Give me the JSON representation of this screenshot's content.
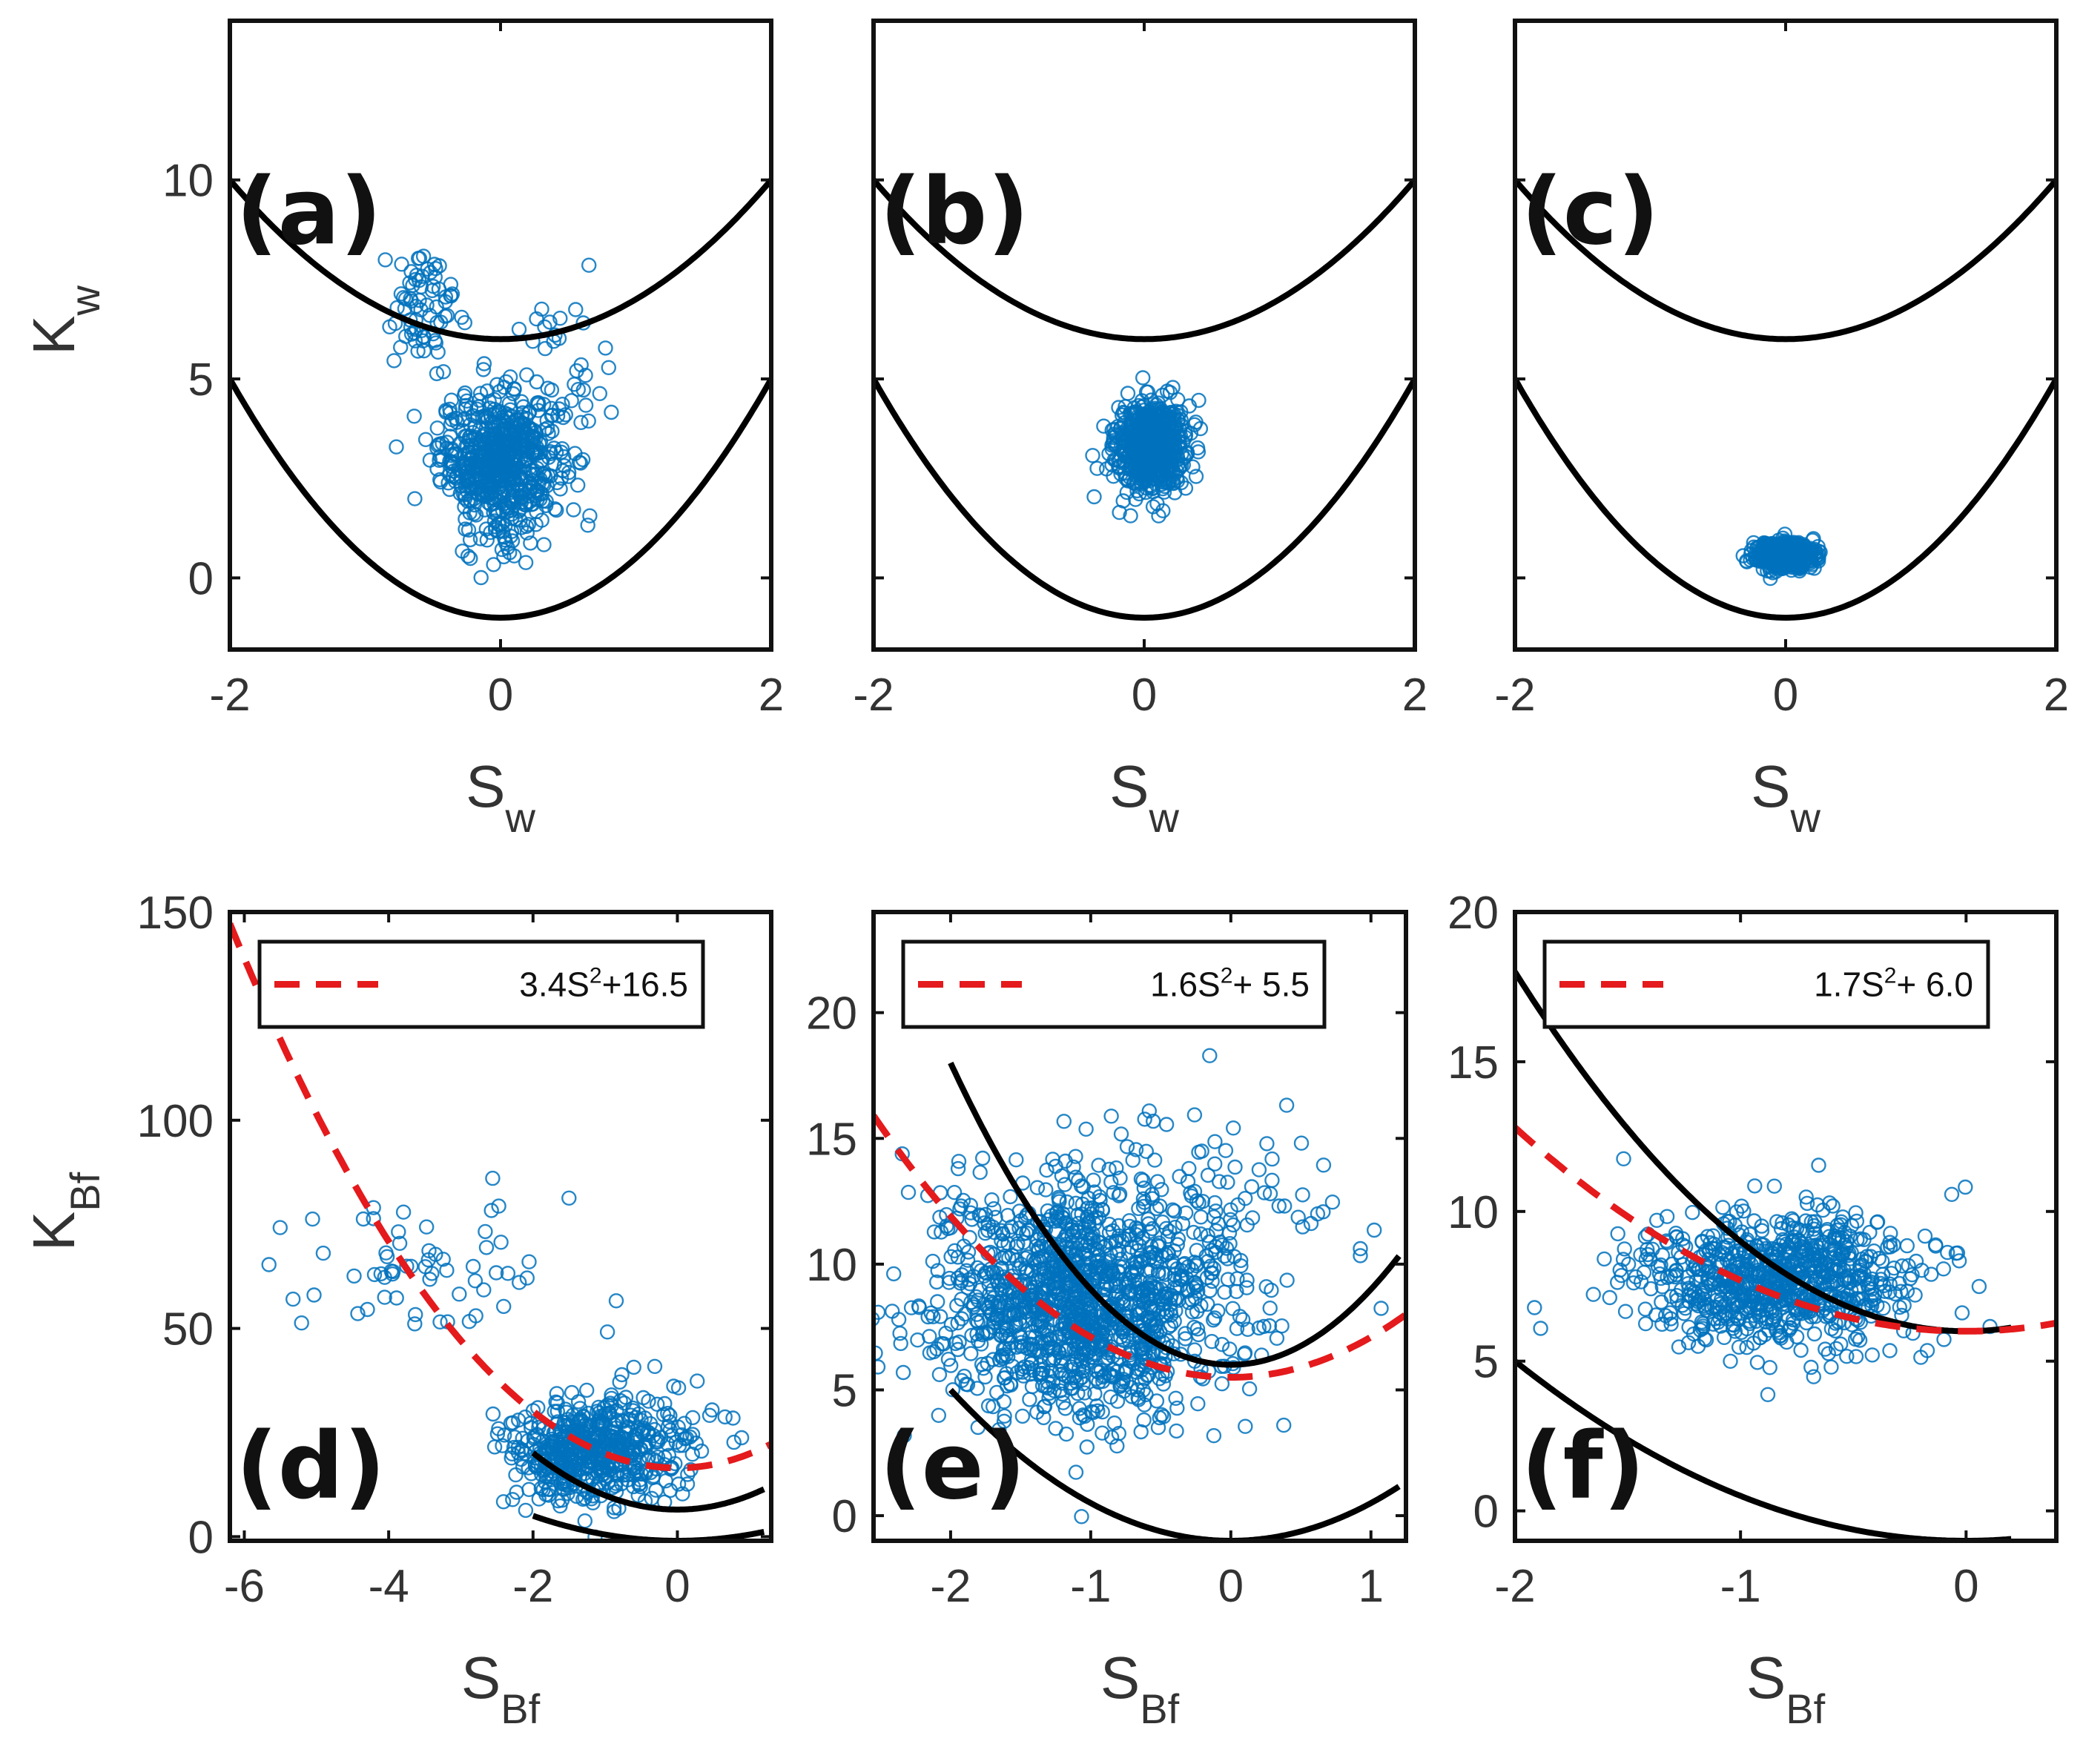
{
  "chart_data": [
    {
      "id": "a",
      "type": "scatter",
      "panel_label": "(a)",
      "xlabel": "S",
      "xlabel_sub": "w",
      "ylabel": "K",
      "ylabel_sub": "w",
      "xlim": [
        -2,
        2
      ],
      "ylim": [
        -1.8,
        14
      ],
      "xticks": [
        "-2",
        "0",
        "2"
      ],
      "yticks": [
        "0",
        "5",
        "10"
      ],
      "bounds": [
        {
          "name": "upper",
          "a": 1,
          "b": 0,
          "c": 6
        },
        {
          "name": "lower",
          "a": 1.5,
          "b": 0,
          "c": -1
        }
      ],
      "point_clusters": [
        {
          "cx": 0.0,
          "cy": 3.0,
          "sx": 0.22,
          "sy": 0.8,
          "n": 620
        },
        {
          "cx": -0.55,
          "cy": 6.8,
          "sx": 0.17,
          "sy": 0.8,
          "n": 70
        },
        {
          "cx": 0.5,
          "cy": 5.5,
          "sx": 0.17,
          "sy": 1.0,
          "n": 32
        },
        {
          "cx": 0.0,
          "cy": 1.0,
          "sx": 0.15,
          "sy": 0.5,
          "n": 30
        }
      ]
    },
    {
      "id": "b",
      "type": "scatter",
      "panel_label": "(b)",
      "xlabel": "S",
      "xlabel_sub": "w",
      "ylabel": "",
      "ylabel_sub": "",
      "xlim": [
        -2,
        2
      ],
      "ylim": [
        -1.8,
        14
      ],
      "xticks": [
        "-2",
        "0",
        "2"
      ],
      "yticks": [],
      "bounds": [
        {
          "name": "upper",
          "a": 1,
          "b": 0,
          "c": 6
        },
        {
          "name": "lower",
          "a": 1.5,
          "b": 0,
          "c": -1
        }
      ],
      "point_clusters": [
        {
          "cx": 0.05,
          "cy": 3.3,
          "sx": 0.13,
          "sy": 0.55,
          "n": 650
        }
      ]
    },
    {
      "id": "c",
      "type": "scatter",
      "panel_label": "(c)",
      "xlabel": "S",
      "xlabel_sub": "w",
      "ylabel": "",
      "ylabel_sub": "",
      "xlim": [
        -2,
        2
      ],
      "ylim": [
        -1.8,
        14
      ],
      "xticks": [
        "-2",
        "0",
        "2"
      ],
      "yticks": [],
      "bounds": [
        {
          "name": "upper",
          "a": 1,
          "b": 0,
          "c": 6
        },
        {
          "name": "lower",
          "a": 1.5,
          "b": 0,
          "c": -1
        }
      ],
      "point_clusters": [
        {
          "cx": 0.0,
          "cy": 0.55,
          "sx": 0.11,
          "sy": 0.17,
          "n": 520
        }
      ]
    },
    {
      "id": "d",
      "type": "scatter",
      "panel_label": "(d)",
      "xlabel": "S",
      "xlabel_sub": "Bf",
      "ylabel": "K",
      "ylabel_sub": "Bf",
      "xlim": [
        -6.2,
        1.3
      ],
      "ylim": [
        -1,
        150
      ],
      "xticks": [
        "-6",
        "-4",
        "-2",
        "0"
      ],
      "yticks": [
        "0",
        "50",
        "100",
        "150"
      ],
      "fit": {
        "a": 3.4,
        "c": 16.5,
        "label": "3.4S",
        "label_rest": "+16.5"
      },
      "bounds": [
        {
          "name": "upper",
          "a": 3.4,
          "b": 0,
          "c": 6.5,
          "xmin": -2,
          "xmax": 1.2
        },
        {
          "name": "lower",
          "a": 1.5,
          "b": 0,
          "c": -1,
          "xmin": -2,
          "xmax": 1.2
        }
      ],
      "point_clusters": [
        {
          "cx": -1.2,
          "cy": 20,
          "sx": 0.55,
          "sy": 6,
          "n": 520
        },
        {
          "cx": -3.6,
          "cy": 62,
          "sx": 0.9,
          "sy": 9,
          "n": 60
        },
        {
          "cx": -0.3,
          "cy": 28,
          "sx": 0.6,
          "sy": 9,
          "n": 40
        }
      ]
    },
    {
      "id": "e",
      "type": "scatter",
      "panel_label": "(e)",
      "xlabel": "S",
      "xlabel_sub": "Bf",
      "ylabel": "",
      "ylabel_sub": "",
      "xlim": [
        -2.55,
        1.25
      ],
      "ylim": [
        -1,
        24
      ],
      "xticks": [
        "-2",
        "-1",
        "0",
        "1"
      ],
      "yticks": [
        "0",
        "5",
        "10",
        "15",
        "20"
      ],
      "fit": {
        "a": 1.6,
        "c": 5.5,
        "label": "1.6S",
        "label_rest": "+ 5.5"
      },
      "bounds": [
        {
          "name": "upper",
          "a": 3,
          "b": 0,
          "c": 6,
          "xmin": -2,
          "xmax": 1.2
        },
        {
          "name": "lower",
          "a": 1.5,
          "b": 0,
          "c": -1,
          "xmin": -2,
          "xmax": 1.2
        }
      ],
      "point_clusters": [
        {
          "cx": -1.1,
          "cy": 8.5,
          "sx": 0.5,
          "sy": 2.3,
          "n": 1300
        },
        {
          "cx": -0.2,
          "cy": 11.5,
          "sx": 0.55,
          "sy": 2.2,
          "n": 110
        }
      ]
    },
    {
      "id": "f",
      "type": "scatter",
      "panel_label": "(f)",
      "xlabel": "S",
      "xlabel_sub": "Bf",
      "ylabel": "",
      "ylabel_sub": "",
      "xlim": [
        -2,
        0.4
      ],
      "ylim": [
        -1,
        20
      ],
      "xticks": [
        "-2",
        "-1",
        "0"
      ],
      "yticks": [
        "0",
        "5",
        "10",
        "15",
        "20"
      ],
      "fit": {
        "a": 1.7,
        "c": 6.0,
        "label": "1.7S",
        "label_rest": "+ 6.0"
      },
      "bounds": [
        {
          "name": "upper",
          "a": 3,
          "b": 0,
          "c": 6,
          "xmin": -2,
          "xmax": 0.2
        },
        {
          "name": "lower",
          "a": 1.5,
          "b": 0,
          "c": -1,
          "xmin": -2,
          "xmax": 0.2
        }
      ],
      "point_clusters": [
        {
          "cx": -0.85,
          "cy": 7.8,
          "sx": 0.3,
          "sy": 1.1,
          "n": 820
        }
      ]
    }
  ]
}
